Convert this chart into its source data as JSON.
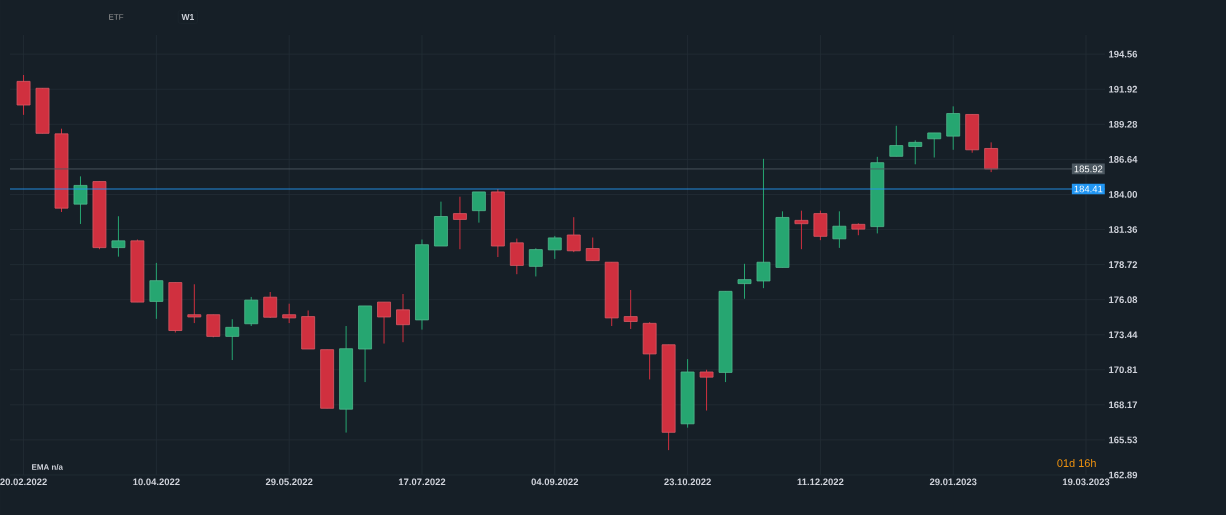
{
  "chart_data": {
    "type": "candlestick",
    "x": [
      "2022-02-20",
      "2022-02-27",
      "2022-03-06",
      "2022-03-13",
      "2022-03-20",
      "2022-03-27",
      "2022-04-03",
      "2022-04-10",
      "2022-04-17",
      "2022-04-24",
      "2022-05-01",
      "2022-05-08",
      "2022-05-15",
      "2022-05-22",
      "2022-05-29",
      "2022-06-05",
      "2022-06-12",
      "2022-06-19",
      "2022-06-26",
      "2022-07-03",
      "2022-07-10",
      "2022-07-17",
      "2022-07-24",
      "2022-07-31",
      "2022-08-07",
      "2022-08-14",
      "2022-08-21",
      "2022-08-28",
      "2022-09-04",
      "2022-09-11",
      "2022-09-18",
      "2022-09-25",
      "2022-10-02",
      "2022-10-09",
      "2022-10-16",
      "2022-10-23",
      "2022-10-30",
      "2022-11-06",
      "2022-11-13",
      "2022-11-20",
      "2022-11-27",
      "2022-12-04",
      "2022-12-11",
      "2022-12-18",
      "2022-12-25",
      "2023-01-01",
      "2023-01-08",
      "2023-01-15",
      "2023-01-22",
      "2023-01-29",
      "2023-02-05",
      "2023-02-12"
    ],
    "ohlc": [
      [
        192.51,
        192.99,
        189.99,
        190.73
      ],
      [
        191.99,
        191.99,
        188.6,
        188.6
      ],
      [
        188.56,
        188.95,
        182.68,
        182.97
      ],
      [
        183.27,
        185.36,
        181.78,
        184.68
      ],
      [
        184.97,
        184.97,
        179.88,
        180.0
      ],
      [
        180.0,
        182.36,
        179.32,
        180.51
      ],
      [
        180.51,
        180.61,
        175.9,
        175.9
      ],
      [
        175.95,
        178.85,
        174.64,
        177.51
      ],
      [
        177.37,
        177.37,
        173.61,
        173.76
      ],
      [
        174.95,
        177.24,
        174.32,
        174.78
      ],
      [
        174.95,
        174.95,
        173.25,
        173.32
      ],
      [
        173.32,
        174.61,
        171.54,
        174.0
      ],
      [
        174.27,
        176.29,
        174.1,
        176.05
      ],
      [
        176.27,
        176.66,
        174.71,
        174.76
      ],
      [
        174.95,
        175.78,
        174.32,
        174.71
      ],
      [
        174.81,
        175.27,
        172.37,
        172.37
      ],
      [
        172.32,
        172.32,
        167.91,
        167.91
      ],
      [
        167.84,
        174.1,
        166.08,
        172.39
      ],
      [
        172.37,
        175.61,
        169.88,
        175.61
      ],
      [
        175.9,
        175.9,
        172.78,
        174.78
      ],
      [
        175.32,
        176.51,
        172.88,
        174.2
      ],
      [
        174.56,
        180.61,
        173.83,
        180.22
      ],
      [
        180.12,
        183.46,
        180.12,
        182.34
      ],
      [
        182.56,
        183.83,
        179.88,
        182.12
      ],
      [
        182.78,
        184.19,
        181.88,
        184.19
      ],
      [
        184.19,
        184.41,
        179.29,
        180.12
      ],
      [
        180.36,
        180.68,
        178.0,
        178.66
      ],
      [
        178.59,
        179.95,
        177.83,
        179.85
      ],
      [
        179.83,
        180.88,
        179.15,
        180.73
      ],
      [
        180.95,
        182.29,
        179.66,
        179.76
      ],
      [
        179.93,
        180.76,
        179.02,
        179.02
      ],
      [
        178.9,
        178.9,
        174.1,
        174.71
      ],
      [
        174.81,
        176.81,
        173.88,
        174.44
      ],
      [
        174.3,
        174.39,
        170.08,
        172.0
      ],
      [
        172.69,
        172.69,
        164.76,
        166.1
      ],
      [
        166.74,
        171.61,
        166.45,
        170.64
      ],
      [
        170.64,
        170.81,
        167.74,
        170.25
      ],
      [
        170.61,
        176.71,
        169.88,
        176.71
      ],
      [
        177.29,
        178.78,
        176.15,
        177.59
      ],
      [
        177.49,
        186.68,
        176.95,
        178.9
      ],
      [
        178.51,
        182.73,
        178.51,
        182.27
      ],
      [
        182.05,
        182.78,
        179.88,
        181.8
      ],
      [
        182.56,
        182.78,
        180.56,
        180.85
      ],
      [
        180.66,
        182.73,
        179.98,
        181.61
      ],
      [
        181.75,
        181.83,
        180.93,
        181.39
      ],
      [
        181.58,
        186.83,
        181.07,
        186.39
      ],
      [
        186.87,
        189.17,
        186.87,
        187.68
      ],
      [
        187.61,
        188.07,
        186.27,
        187.92
      ],
      [
        188.19,
        188.63,
        186.78,
        188.63
      ],
      [
        188.39,
        190.63,
        187.36,
        190.09
      ],
      [
        190.02,
        190.02,
        187.14,
        187.36
      ],
      [
        187.46,
        187.92,
        185.68,
        185.92
      ]
    ],
    "colors": [
      "#d0303f",
      "#d0303f",
      "#d0303f",
      "#26a671",
      "#d0303f",
      "#26a671",
      "#d0303f",
      "#26a671",
      "#d0303f",
      "#d0303f",
      "#d0303f",
      "#26a671",
      "#26a671",
      "#d0303f",
      "#d0303f",
      "#d0303f",
      "#d0303f",
      "#26a671",
      "#26a671",
      "#d0303f",
      "#d0303f",
      "#26a671",
      "#26a671",
      "#d0303f",
      "#26a671",
      "#d0303f",
      "#d0303f",
      "#26a671",
      "#26a671",
      "#d0303f",
      "#d0303f",
      "#d0303f",
      "#d0303f",
      "#d0303f",
      "#d0303f",
      "#26a671",
      "#d0303f",
      "#26a671",
      "#26a671",
      "#26a671",
      "#26a671",
      "#d0303f",
      "#d0303f",
      "#26a671",
      "#d0303f",
      "#26a671",
      "#26a671",
      "#26a671",
      "#26a671",
      "#26a671",
      "#d0303f",
      "#d0303f"
    ],
    "xlim": [
      "2022-02-15",
      "2023-03-26"
    ],
    "xticks": [
      {
        "value": "2022-02-20",
        "label": "20.02.2022"
      },
      {
        "value": "2022-04-10",
        "label": "10.04.2022"
      },
      {
        "value": "2022-05-29",
        "label": "29.05.2022"
      },
      {
        "value": "2022-07-17",
        "label": "17.07.2022"
      },
      {
        "value": "2022-09-04",
        "label": "04.09.2022"
      },
      {
        "value": "2022-10-23",
        "label": "23.10.2022"
      },
      {
        "value": "2022-12-11",
        "label": "11.12.2022"
      },
      {
        "value": "2023-01-29",
        "label": "29.01.2023"
      },
      {
        "value": "2023-03-19",
        "label": "19.03.2023"
      }
    ],
    "ylim": [
      162.89,
      196.0
    ],
    "yticks": [
      {
        "value": 162.89,
        "label": "162.89"
      },
      {
        "value": 165.53,
        "label": "165.53"
      },
      {
        "value": 168.17,
        "label": "168.17"
      },
      {
        "value": 170.81,
        "label": "170.81"
      },
      {
        "value": 173.44,
        "label": "173.44"
      },
      {
        "value": 176.08,
        "label": "176.08"
      },
      {
        "value": 178.72,
        "label": "178.72"
      },
      {
        "value": 181.36,
        "label": "181.36"
      },
      {
        "value": 184.0,
        "label": "184.00"
      },
      {
        "value": 186.64,
        "label": "186.64"
      },
      {
        "value": 189.28,
        "label": "189.28"
      },
      {
        "value": 191.92,
        "label": "191.92"
      },
      {
        "value": 194.56,
        "label": "194.56"
      }
    ],
    "grid": true,
    "ref_lines": [
      {
        "axis": "y",
        "value": 184.41,
        "label": "184.41",
        "color": "#2196f3"
      },
      {
        "axis": "y",
        "value": 185.92,
        "label": "185.92",
        "color": "#4c5861"
      }
    ],
    "annotations": [
      "ETF",
      "W1",
      "EMA n/a",
      "01d 16h"
    ]
  }
}
